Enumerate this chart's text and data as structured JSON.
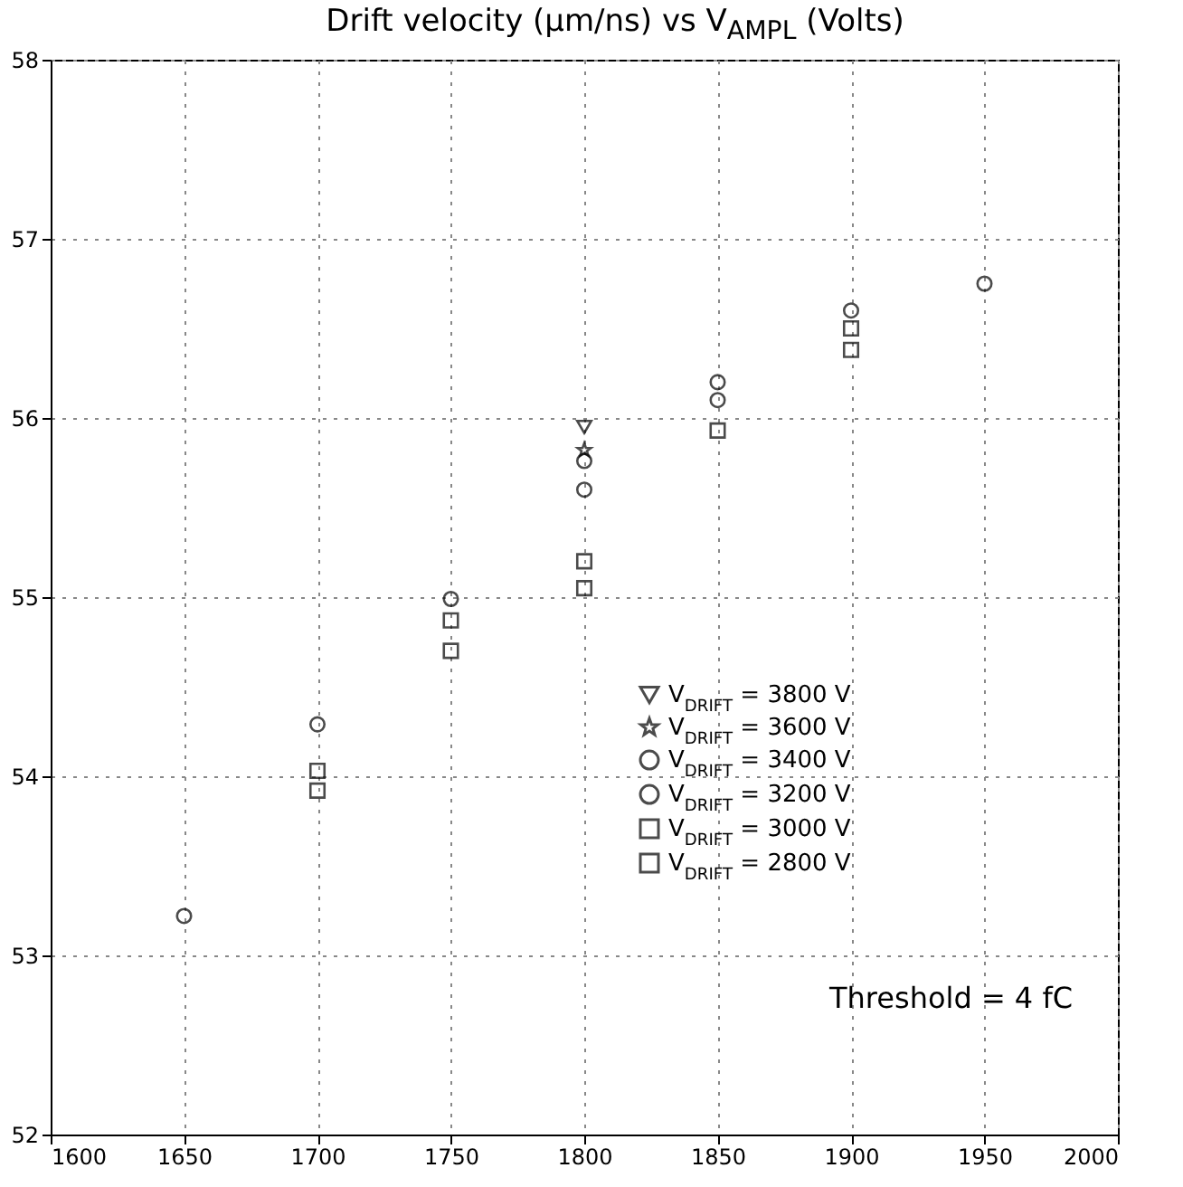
{
  "chart_data": {
    "type": "scatter",
    "title": "Drift velocity (μm/ns) vs V$_{AMPL}$ (Volts)",
    "xlim": [
      1600,
      2000
    ],
    "xticks": [
      1600,
      1650,
      1700,
      1750,
      1800,
      1850,
      1900,
      1950,
      2000
    ],
    "ylim": [
      52,
      58
    ],
    "yticks": [
      52,
      53,
      54,
      55,
      56,
      57,
      58
    ],
    "grid": true,
    "legend": "bottom right",
    "annotations": [
      "Threshold = 4 fC"
    ],
    "series": [
      {
        "name": "V$_{DRIFT}$ = 3800 V",
        "color": "#000000",
        "marker": "triangle",
        "x": [
          1800
        ],
        "values": [
          55.95
        ]
      },
      {
        "name": "V$_{DRIFT}$ = 3600 V",
        "color": "#000000",
        "marker": "star",
        "x": [
          1800
        ],
        "values": [
          55.82
        ]
      },
      {
        "name": "V$_{DRIFT}$ = 3400 V",
        "color": "#000000",
        "marker": "circle",
        "x": [
          1700,
          1800,
          1850,
          1900
        ],
        "values": [
          54.29,
          55.76,
          56.1,
          56.6
        ]
      },
      {
        "name": "V$_{DRIFT}$ = 3200 V",
        "color": "#000000",
        "marker": "circle",
        "x": [
          1650,
          1750,
          1800,
          1850,
          1950
        ],
        "values": [
          53.22,
          54.99,
          55.6,
          56.2,
          56.75
        ]
      },
      {
        "name": "V$_{DRIFT}$ = 3000 V",
        "color": "#000000",
        "marker": "square",
        "x": [
          1700,
          1750,
          1800,
          1850,
          1900
        ],
        "values": [
          53.92,
          54.7,
          55.05,
          55.93,
          56.38
        ]
      },
      {
        "name": "V$_{DRIFT}$ = 2800 V",
        "color": "#000000",
        "marker": "square",
        "x": [
          1700,
          1750,
          1800,
          1900
        ],
        "values": [
          54.03,
          54.87,
          55.2,
          56.5
        ]
      }
    ]
  }
}
